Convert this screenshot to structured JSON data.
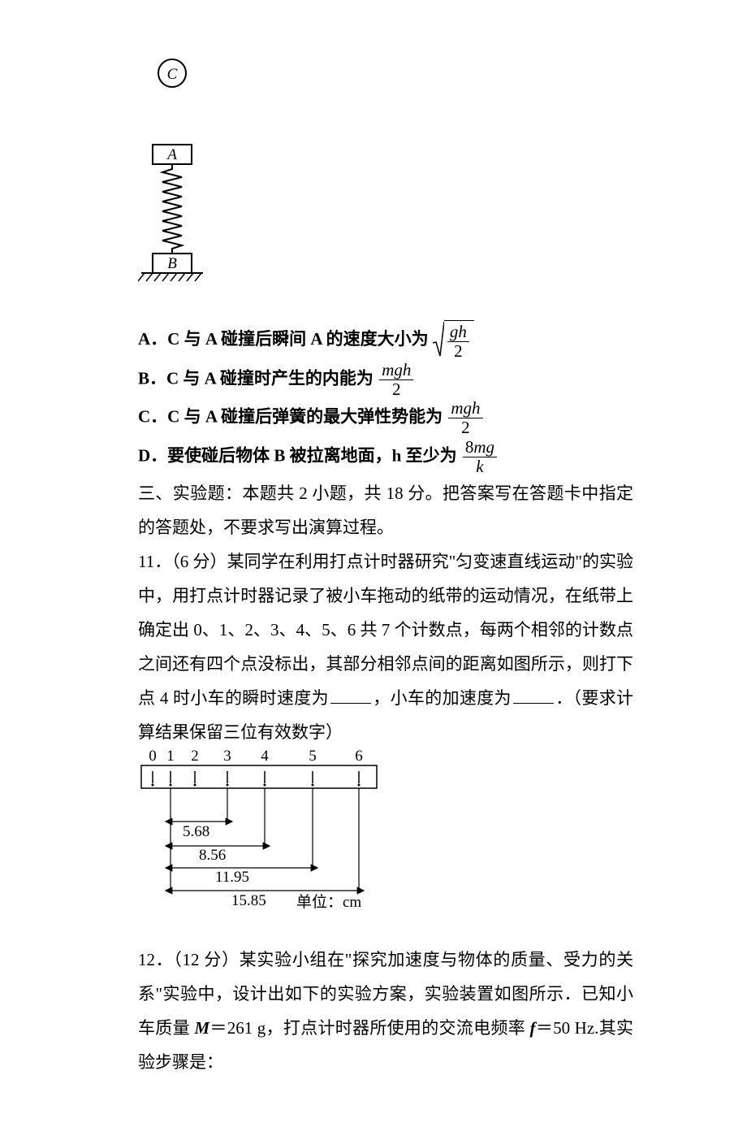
{
  "figure1": {
    "label_C": "C",
    "label_A": "A",
    "label_B": "B"
  },
  "options": {
    "A": {
      "label": "A．",
      "text_before": "C 与 A 碰撞后瞬间 A 的速度大小为",
      "frac_num": "gh",
      "frac_den": "2"
    },
    "B": {
      "label": "B．",
      "text_before": "C 与 A 碰撞时产生的内能为",
      "frac_num": "mgh",
      "frac_den": "2"
    },
    "C": {
      "label": "C．",
      "text_before": "C 与 A 碰撞后弹簧的最大弹性势能为",
      "frac_num": "mgh",
      "frac_den": "2"
    },
    "D": {
      "label": "D．",
      "text_before": "要使碰后物体 B 被拉离地面，h 至少为",
      "frac_num": "8mg",
      "frac_den": "k"
    }
  },
  "section3": {
    "heading": "三、实验题：本题共 2 小题，共 18 分。把答案写在答题卡中指定的答题处，不要求写出演算过程。"
  },
  "q11": {
    "num": "11．",
    "points": "（6 分）",
    "text1": "某同学在利用打点计时器研究\"匀变速直线运动\"的实验中，用打点计时器记录了被小车拖动的纸带的运动情况，在纸带上确定出 0、1、2、3、4、5、6 共 7 个计数点，每两个相邻的计数点之间还有四个点没标出，其部分相邻点间的距离如图所示，则打下点 4 时小车的瞬时速度为",
    "text2": "，小车的加速度为",
    "text3": "．（要求计算结果保留三位有效数字）",
    "tape": {
      "ticks": [
        "0",
        "1",
        "2",
        "3",
        "4",
        "5",
        "6"
      ],
      "m1": "5.68",
      "m2": "8.56",
      "m3": "11.95",
      "m4": "15.85",
      "unit": "单位：cm"
    }
  },
  "q12": {
    "num": "12．",
    "points": "（12 分）",
    "text": "某实验小组在\"探究加速度与物体的质量、受力的关系\"实验中，设计出如下的实验方案，实验装置如图所示．已知小车质量 ",
    "mass_var": "M",
    "mass_eq": "＝261 g，打点计时器所使用的交流电频率 ",
    "freq_var": "f",
    "freq_eq": "＝50 Hz.其实验步骤是："
  },
  "style": {
    "text_color": "#000000",
    "bg_color": "#ffffff",
    "font_size_pt": 16,
    "diagram_stroke": "#000000",
    "diagram_fill": "#ffffff"
  }
}
